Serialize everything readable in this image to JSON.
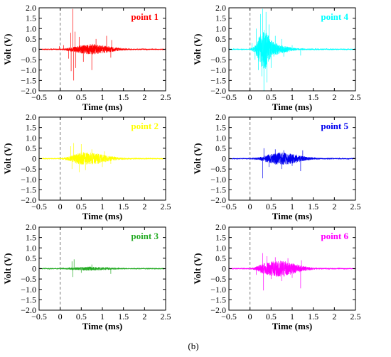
{
  "figure": {
    "caption": "(b)"
  },
  "chart_data": [
    {
      "type": "line",
      "label": "point 1",
      "color": "#ff0000",
      "xlabel": "Time (ms)",
      "ylabel": "Volt (V)",
      "xlim": [
        -0.5,
        2.5
      ],
      "ylim": [
        -2.0,
        2.0
      ],
      "xticks": [
        "−0.5",
        "0",
        "0.5",
        "1",
        "1.5",
        "2",
        "2.5"
      ],
      "yticks": [
        "2.0",
        "1.5",
        "1.0",
        "0.5",
        "0",
        "−0.5",
        "−1.0",
        "−1.5",
        "−2.0"
      ],
      "trigger_marker_x": 0,
      "grid": false,
      "series": [
        {
          "envelope": {
            "x": [
              -0.5,
              0.0,
              0.2,
              0.3,
              0.4,
              0.5,
              0.6,
              0.7,
              0.8,
              0.9,
              1.0,
              1.1,
              1.2,
              1.3,
              1.5,
              1.7,
              2.5
            ],
            "amplitude": [
              0.02,
              0.02,
              0.08,
              0.12,
              0.15,
              0.2,
              0.22,
              0.26,
              0.25,
              0.22,
              0.2,
              0.16,
              0.14,
              0.1,
              0.05,
              0.03,
              0.02
            ]
          },
          "spikes": [
            [
              -0.02,
              0.15
            ],
            [
              0.08,
              0.2
            ],
            [
              0.2,
              -0.45
            ],
            [
              0.25,
              0.8
            ],
            [
              0.26,
              -1.05
            ],
            [
              0.3,
              1.95
            ],
            [
              0.32,
              -1.5
            ],
            [
              0.35,
              0.85
            ],
            [
              0.37,
              -0.9
            ],
            [
              0.45,
              0.6
            ],
            [
              0.55,
              -0.6
            ],
            [
              0.75,
              -1.0
            ],
            [
              0.85,
              0.5
            ],
            [
              1.1,
              0.65
            ],
            [
              1.2,
              -0.4
            ],
            [
              1.22,
              0.45
            ]
          ]
        }
      ]
    },
    {
      "type": "line",
      "label": "point 4",
      "color": "#00ffff",
      "xlabel": "Time (ms)",
      "ylabel": "Volt (V)",
      "xlim": [
        -0.5,
        2.5
      ],
      "ylim": [
        -2.0,
        2.0
      ],
      "xticks": [
        "−0.5",
        "0",
        "0.5",
        "1",
        "1.5",
        "2",
        "2.5"
      ],
      "yticks": [
        "2.0",
        "1.5",
        "1.0",
        "0.5",
        "0",
        "−0.5",
        "−1.0",
        "−1.5",
        "−2.0"
      ],
      "trigger_marker_x": 0,
      "grid": false,
      "series": [
        {
          "envelope": {
            "x": [
              -0.5,
              0.0,
              0.1,
              0.15,
              0.2,
              0.25,
              0.3,
              0.35,
              0.4,
              0.45,
              0.5,
              0.6,
              0.7,
              0.8,
              1.0,
              1.2,
              2.5
            ],
            "amplitude": [
              0.02,
              0.02,
              0.15,
              0.3,
              0.55,
              0.8,
              0.9,
              1.0,
              0.85,
              0.6,
              0.45,
              0.3,
              0.25,
              0.18,
              0.08,
              0.04,
              0.02
            ]
          },
          "spikes": [
            [
              0.05,
              0.3
            ],
            [
              0.12,
              -0.5
            ],
            [
              0.15,
              1.0
            ],
            [
              0.2,
              -1.0
            ],
            [
              0.25,
              1.7
            ],
            [
              0.28,
              -1.3
            ],
            [
              0.3,
              1.95
            ],
            [
              0.33,
              -2.0
            ],
            [
              0.38,
              1.8
            ],
            [
              0.4,
              -1.6
            ],
            [
              0.45,
              1.2
            ],
            [
              0.5,
              -0.9
            ],
            [
              0.6,
              0.65
            ],
            [
              0.75,
              0.5
            ],
            [
              0.8,
              -0.35
            ],
            [
              1.0,
              0.2
            ],
            [
              1.2,
              -0.3
            ]
          ]
        }
      ]
    },
    {
      "type": "line",
      "label": "point 2",
      "color": "#ffff00",
      "xlabel": "Time (ms)",
      "ylabel": "Volt (V)",
      "xlim": [
        -0.5,
        2.5
      ],
      "ylim": [
        -2.0,
        2.0
      ],
      "xticks": [
        "−0.5",
        "0",
        "0.5",
        "1",
        "1.5",
        "2",
        "2.5"
      ],
      "yticks": [
        "2.0",
        "1.5",
        "1.0",
        "0.5",
        "0",
        "−0.5",
        "−1.0",
        "−1.5",
        "−2.0"
      ],
      "trigger_marker_x": 0,
      "grid": false,
      "series": [
        {
          "envelope": {
            "x": [
              -0.5,
              0.0,
              0.2,
              0.3,
              0.4,
              0.5,
              0.6,
              0.7,
              0.8,
              0.9,
              1.0,
              1.1,
              1.2,
              1.4,
              1.6,
              2.5
            ],
            "amplitude": [
              0.02,
              0.02,
              0.1,
              0.18,
              0.25,
              0.3,
              0.32,
              0.3,
              0.28,
              0.25,
              0.2,
              0.15,
              0.12,
              0.06,
              0.03,
              0.02
            ]
          },
          "spikes": [
            [
              0.25,
              0.6
            ],
            [
              0.28,
              -0.5
            ],
            [
              0.32,
              0.75
            ],
            [
              0.45,
              -0.65
            ],
            [
              0.5,
              0.7
            ],
            [
              0.6,
              -0.55
            ],
            [
              0.75,
              0.45
            ],
            [
              1.0,
              -0.4
            ],
            [
              1.05,
              0.35
            ],
            [
              1.2,
              -0.25
            ]
          ]
        }
      ]
    },
    {
      "type": "line",
      "label": "point 5",
      "color": "#0000ee",
      "xlabel": "Time (ms)",
      "ylabel": "Volt (V)",
      "xlim": [
        -0.5,
        2.5
      ],
      "ylim": [
        -2.0,
        2.0
      ],
      "xticks": [
        "−0.5",
        "0",
        "0.5",
        "1",
        "1.5",
        "2",
        "2.5"
      ],
      "yticks": [
        "2.0",
        "1.5",
        "1.0",
        "0.5",
        "0",
        "−0.5",
        "−1.0",
        "−1.5",
        "−2.0"
      ],
      "trigger_marker_x": 0,
      "grid": false,
      "series": [
        {
          "envelope": {
            "x": [
              -0.5,
              0.0,
              0.2,
              0.3,
              0.4,
              0.5,
              0.6,
              0.7,
              0.8,
              0.9,
              1.0,
              1.1,
              1.2,
              1.3,
              1.5,
              1.7,
              2.5
            ],
            "amplitude": [
              0.02,
              0.02,
              0.06,
              0.12,
              0.18,
              0.22,
              0.28,
              0.3,
              0.3,
              0.28,
              0.25,
              0.2,
              0.15,
              0.1,
              0.05,
              0.03,
              0.02
            ]
          },
          "spikes": [
            [
              0.3,
              -0.95
            ],
            [
              0.33,
              0.5
            ],
            [
              0.45,
              -0.4
            ],
            [
              0.6,
              0.45
            ],
            [
              0.75,
              -0.5
            ],
            [
              0.8,
              0.4
            ],
            [
              1.0,
              -0.35
            ],
            [
              1.2,
              -0.6
            ],
            [
              1.25,
              0.4
            ]
          ]
        }
      ]
    },
    {
      "type": "line",
      "label": "point 3",
      "color": "#22aa22",
      "xlabel": "Time (ms)",
      "ylabel": "Volt (V)",
      "xlim": [
        -0.5,
        2.5
      ],
      "ylim": [
        -2.0,
        2.0
      ],
      "xticks": [
        "−0.5",
        "0",
        "0.5",
        "1",
        "1.5",
        "2",
        "2.5"
      ],
      "yticks": [
        "2.0",
        "1.5",
        "1.0",
        "0.5",
        "0",
        "−0.5",
        "−1.0",
        "−1.5",
        "−2.0"
      ],
      "trigger_marker_x": 0,
      "grid": false,
      "series": [
        {
          "envelope": {
            "x": [
              -0.5,
              0.0,
              0.2,
              0.3,
              0.4,
              0.5,
              0.6,
              0.7,
              0.8,
              0.9,
              1.0,
              1.2,
              1.4,
              1.6,
              2.5
            ],
            "amplitude": [
              0.02,
              0.02,
              0.04,
              0.06,
              0.07,
              0.08,
              0.09,
              0.1,
              0.09,
              0.08,
              0.07,
              0.05,
              0.03,
              0.02,
              0.02
            ]
          },
          "spikes": [
            [
              0.28,
              0.35
            ],
            [
              0.3,
              -0.4
            ],
            [
              0.33,
              0.45
            ],
            [
              0.5,
              -0.2
            ],
            [
              0.75,
              0.2
            ],
            [
              1.2,
              -0.25
            ]
          ]
        }
      ]
    },
    {
      "type": "line",
      "label": "point 6",
      "color": "#ff00ff",
      "xlabel": "Time (ms)",
      "ylabel": "Volt (V)",
      "xlim": [
        -0.5,
        2.5
      ],
      "ylim": [
        -2.0,
        2.0
      ],
      "xticks": [
        "−0.5",
        "0",
        "0.5",
        "1",
        "1.5",
        "2",
        "2.5"
      ],
      "yticks": [
        "2.0",
        "1.5",
        "1.0",
        "0.5",
        "0",
        "−0.5",
        "−1.0",
        "−1.5",
        "−2.0"
      ],
      "trigger_marker_x": 0,
      "grid": false,
      "series": [
        {
          "envelope": {
            "x": [
              -0.5,
              0.0,
              0.1,
              0.2,
              0.3,
              0.4,
              0.5,
              0.6,
              0.7,
              0.8,
              0.9,
              1.0,
              1.1,
              1.2,
              1.4,
              1.6,
              2.5
            ],
            "amplitude": [
              0.02,
              0.02,
              0.06,
              0.15,
              0.25,
              0.32,
              0.38,
              0.4,
              0.4,
              0.38,
              0.32,
              0.28,
              0.22,
              0.15,
              0.08,
              0.03,
              0.02
            ]
          },
          "spikes": [
            [
              0.15,
              -0.3
            ],
            [
              0.3,
              0.75
            ],
            [
              0.32,
              -1.05
            ],
            [
              0.4,
              0.6
            ],
            [
              0.5,
              -0.5
            ],
            [
              0.6,
              0.55
            ],
            [
              0.75,
              -0.6
            ],
            [
              0.9,
              0.5
            ],
            [
              1.0,
              -0.45
            ],
            [
              1.2,
              -0.95
            ],
            [
              1.22,
              0.4
            ]
          ]
        }
      ]
    }
  ]
}
